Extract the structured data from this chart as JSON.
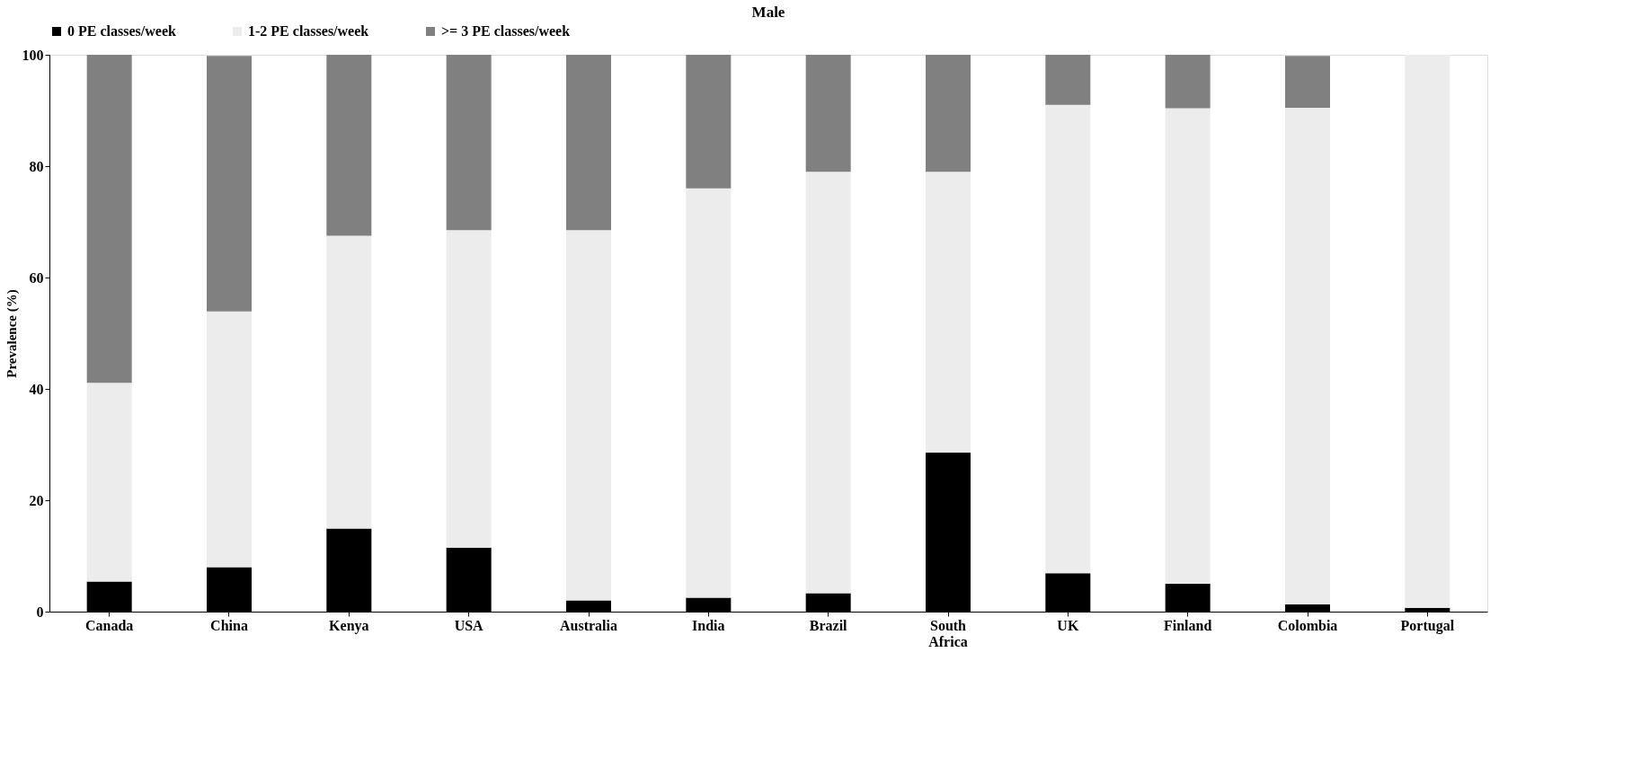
{
  "chart_data": {
    "type": "bar",
    "title": "Male",
    "ylabel": "Prevalence (%)",
    "stacked": true,
    "categories": [
      "Canada",
      "China",
      "Kenya",
      "USA",
      "Australia",
      "India",
      "Brazil",
      "South Africa",
      "UK",
      "Finland",
      "Colombia",
      "Portugal"
    ],
    "series": [
      {
        "name": "0 PE classes/week",
        "color": "#000000",
        "values": [
          5.4,
          8,
          14.9,
          11.5,
          2,
          2.5,
          3.3,
          28.6,
          6.9,
          5,
          1.3,
          0.7
        ]
      },
      {
        "name": "1-2 PE classes/week",
        "color": "#ececec",
        "values": [
          35.7,
          45.9,
          52.6,
          57,
          66.5,
          73.5,
          75.7,
          50.4,
          84.1,
          85.4,
          89.2,
          99.3
        ]
      },
      {
        "name": ">= 3 PE classes/week",
        "color": "#808080",
        "values": [
          58.9,
          45.9,
          32.5,
          31.5,
          31.5,
          24,
          21,
          21,
          9,
          9.6,
          9.3,
          0
        ]
      }
    ],
    "ylim": [
      0,
      100
    ],
    "yticks": [
      0,
      20,
      40,
      60,
      80,
      100
    ],
    "grid": false,
    "legend": "top"
  }
}
